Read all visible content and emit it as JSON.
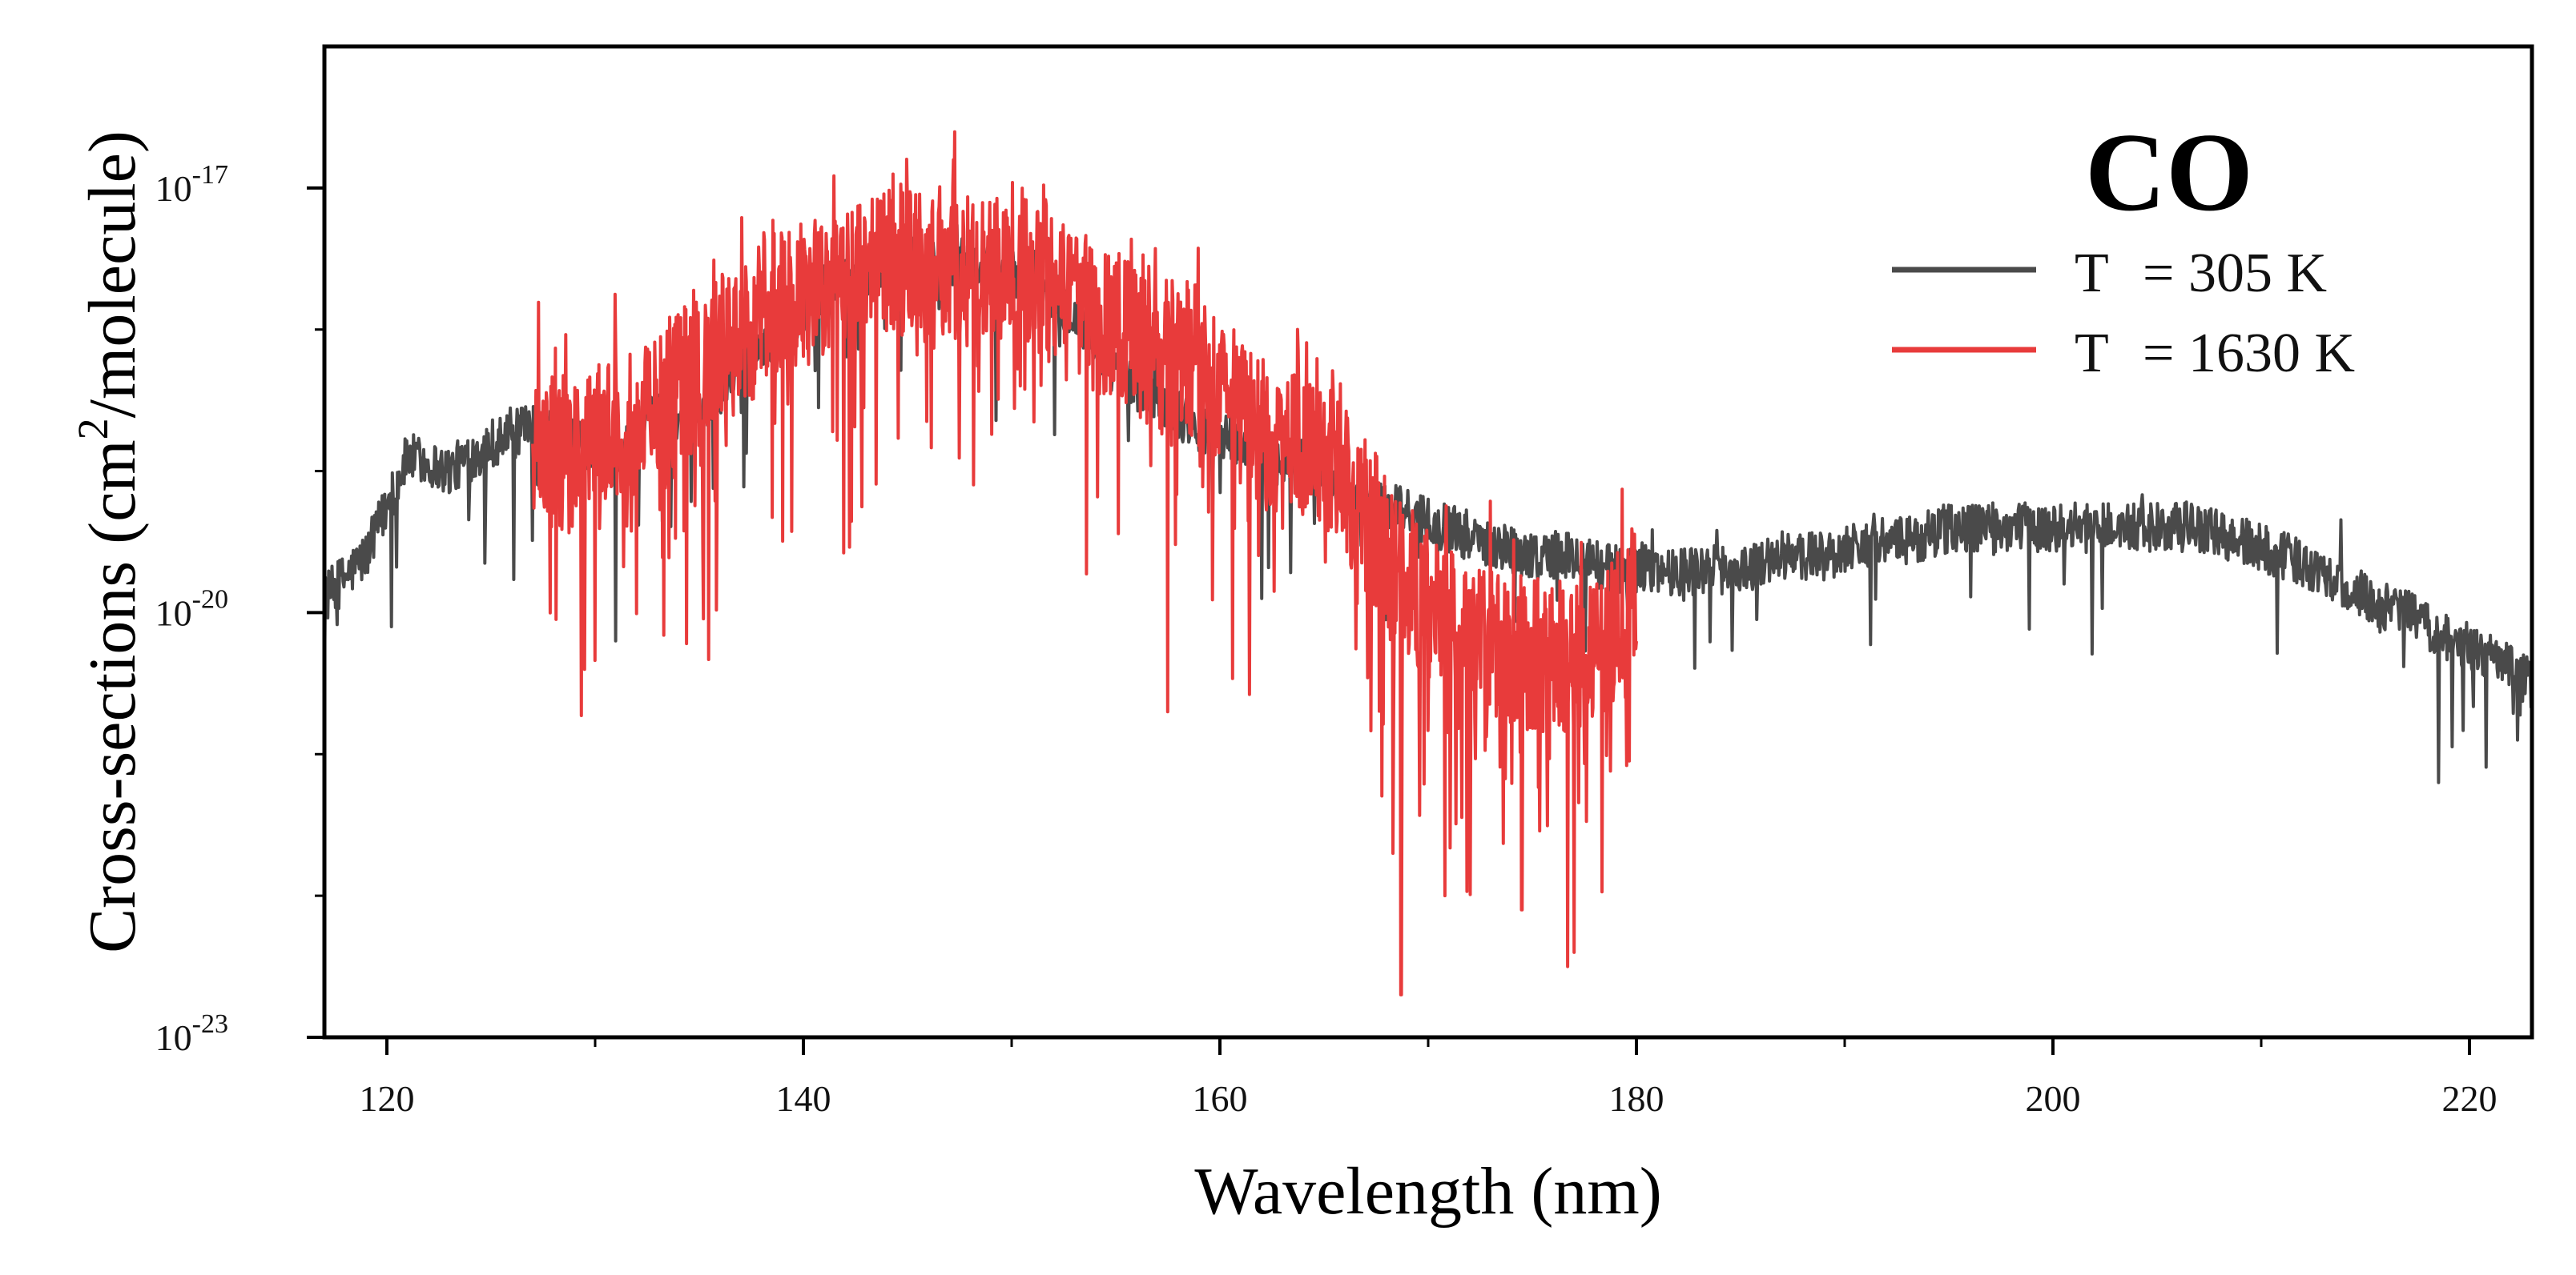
{
  "chart_data": {
    "type": "line",
    "title": "CO",
    "xlabel": "Wavelength (nm)",
    "ylabel": "Cross-sections (cm²/molecule)",
    "ylabel_parts": {
      "pre": "Cross-sections (cm",
      "sup": "2",
      "post": "/molecule)"
    },
    "xlim": [
      117,
      223
    ],
    "ylim_exp": [
      -23,
      -16
    ],
    "y_scale": "log",
    "x_ticks": [
      120,
      140,
      160,
      180,
      200,
      220
    ],
    "y_ticks": [
      {
        "base": "10",
        "exp": "-23"
      },
      {
        "base": "10",
        "exp": "-20"
      },
      {
        "base": "10",
        "exp": "-17"
      }
    ],
    "legend_position": "top-right",
    "series": [
      {
        "name": "T = 305 K",
        "label_parts": {
          "t": "T",
          "rest": "= 305 K"
        },
        "color": "#4a4a4a",
        "x_range": [
          117,
          223
        ],
        "anchors_x": [
          117,
          119,
          121,
          123,
          125,
          127,
          129,
          131,
          133,
          135,
          137,
          139,
          141,
          143,
          145,
          147,
          149,
          151,
          153,
          155,
          157,
          159,
          161,
          163,
          165,
          167,
          169,
          171,
          173,
          175,
          177,
          179,
          181,
          183,
          185,
          187,
          189,
          191,
          193,
          195,
          197,
          199,
          201,
          203,
          205,
          207,
          209,
          211,
          213,
          215,
          217,
          219,
          221,
          223
        ],
        "anchors_log10": [
          -19.9,
          -19.6,
          -18.9,
          -19.0,
          -18.8,
          -18.7,
          -18.8,
          -18.9,
          -18.6,
          -18.6,
          -18.2,
          -18.0,
          -17.7,
          -17.6,
          -17.5,
          -17.5,
          -17.6,
          -17.6,
          -17.9,
          -18.3,
          -18.5,
          -18.7,
          -18.8,
          -18.9,
          -19.0,
          -19.2,
          -19.3,
          -19.4,
          -19.5,
          -19.6,
          -19.6,
          -19.7,
          -19.7,
          -19.7,
          -19.7,
          -19.6,
          -19.6,
          -19.5,
          -19.5,
          -19.4,
          -19.4,
          -19.4,
          -19.4,
          -19.4,
          -19.4,
          -19.4,
          -19.5,
          -19.6,
          -19.7,
          -19.9,
          -20.0,
          -20.2,
          -20.3,
          -20.5
        ],
        "notable_dips": [
          {
            "x": 131.0,
            "log10": -20.2
          },
          {
            "x": 162.0,
            "log10": -19.9
          },
          {
            "x": 218.5,
            "log10": -21.2
          },
          {
            "x": 222.3,
            "log10": -20.9
          }
        ]
      },
      {
        "name": "T = 1630 K",
        "label_parts": {
          "t": "T",
          "rest": "= 1630 K"
        },
        "color": "#e83b3b",
        "x_range": [
          127,
          180
        ],
        "anchors_x": [
          127,
          129,
          131,
          133,
          135,
          137,
          139,
          141,
          143,
          145,
          147,
          149,
          151,
          153,
          155,
          157,
          159,
          161,
          163,
          165,
          167,
          169,
          171,
          173,
          175,
          177,
          179,
          180
        ],
        "anchors_log10": [
          -18.8,
          -18.9,
          -18.7,
          -18.5,
          -18.3,
          -18.0,
          -17.8,
          -17.7,
          -17.6,
          -17.5,
          -17.6,
          -17.6,
          -17.6,
          -17.8,
          -18.0,
          -18.2,
          -18.2,
          -18.6,
          -18.9,
          -18.9,
          -19.3,
          -19.8,
          -20.1,
          -20.2,
          -20.3,
          -20.3,
          -20.1,
          -19.9
        ],
        "notable_dips": [
          {
            "x": 129.5,
            "log10": -20.4
          },
          {
            "x": 157.5,
            "log10": -20.7
          },
          {
            "x": 168.3,
            "log10": -21.7
          },
          {
            "x": 168.7,
            "log10": -22.7
          },
          {
            "x": 170.8,
            "log10": -22.0
          },
          {
            "x": 174.5,
            "log10": -22.1
          },
          {
            "x": 176.7,
            "log10": -22.5
          },
          {
            "x": 177.0,
            "log10": -22.4
          }
        ]
      }
    ]
  }
}
